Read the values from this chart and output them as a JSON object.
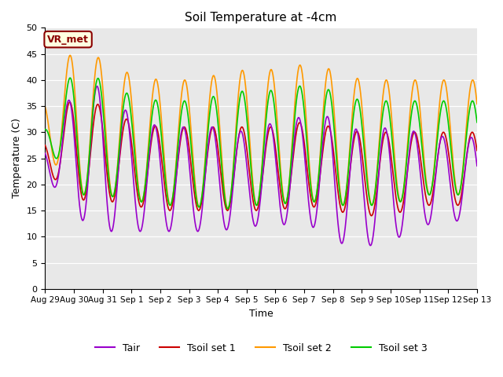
{
  "title": "Soil Temperature at -4cm",
  "xlabel": "Time",
  "ylabel": "Temperature (C)",
  "ylim": [
    0,
    50
  ],
  "yticks": [
    0,
    5,
    10,
    15,
    20,
    25,
    30,
    35,
    40,
    45,
    50
  ],
  "colors": {
    "Tair": "#9900cc",
    "Tsoil1": "#cc0000",
    "Tsoil2": "#ff9900",
    "Tsoil3": "#00cc00"
  },
  "annotation_text": "VR_met",
  "bg_color": "#e8e8e8",
  "fig_color": "#ffffff",
  "legend_labels": [
    "Tair",
    "Tsoil set 1",
    "Tsoil set 2",
    "Tsoil set 3"
  ],
  "x_tick_labels": [
    "Aug 29",
    "Aug 30",
    "Aug 31",
    "Sep 1",
    "Sep 2",
    "Sep 3",
    "Sep 4",
    "Sep 5",
    "Sep 6",
    "Sep 7",
    "Sep 8",
    "Sep 9",
    "Sep 10",
    "Sep 11",
    "Sep 12",
    "Sep 13"
  ],
  "n_points": 3360,
  "days": 15,
  "period_hours": 24,
  "tair_mean": [
    25,
    26,
    25,
    22,
    21,
    21,
    21,
    21,
    22,
    23,
    21,
    19,
    20,
    21,
    21,
    21
  ],
  "tair_amp": [
    3,
    12,
    14,
    11,
    10,
    10,
    10,
    9,
    10,
    10,
    12,
    11,
    11,
    9,
    8,
    8
  ],
  "ts1_mean": [
    26,
    27,
    26,
    24,
    23,
    23,
    23,
    23,
    23,
    24,
    23,
    22,
    22,
    23,
    23,
    23
  ],
  "ts1_amp": [
    3,
    10,
    9,
    8,
    8,
    8,
    8,
    8,
    8,
    8,
    8,
    8,
    8,
    7,
    7,
    7
  ],
  "ts2_mean": [
    32,
    32,
    31,
    29,
    28,
    28,
    28,
    29,
    29,
    30,
    29,
    28,
    28,
    29,
    29,
    29
  ],
  "ts2_amp": [
    5,
    14,
    13,
    12,
    12,
    12,
    13,
    13,
    13,
    13,
    13,
    12,
    12,
    11,
    11,
    11
  ],
  "ts3_mean": [
    30,
    30,
    29,
    27,
    26,
    26,
    26,
    27,
    27,
    28,
    27,
    26,
    26,
    27,
    27,
    27
  ],
  "ts3_amp": [
    1,
    12,
    11,
    10,
    10,
    10,
    11,
    11,
    11,
    11,
    11,
    10,
    10,
    9,
    9,
    9
  ]
}
